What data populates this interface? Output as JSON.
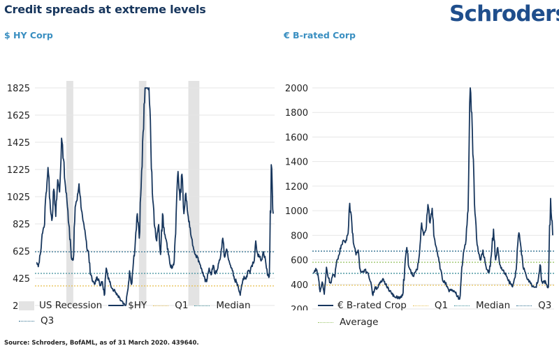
{
  "header": {
    "title": "Credit spreads at extreme levels",
    "logo": "Schroders"
  },
  "footer": {
    "source": "Source: Schroders, BofAML, as of 31 March 2020. 439640."
  },
  "colors": {
    "series": "#17365d",
    "q1": "#e8c35a",
    "median": "#3f8f9a",
    "q3": "#2f6f8f",
    "average": "#9cc56a",
    "recession": "#e3e3e3",
    "grid": "#e6e6e6",
    "subtitle": "#3a8fc1"
  },
  "chart_data": [
    {
      "type": "line",
      "title": "$ HY Corp",
      "xlabel": "",
      "ylabel": "",
      "ylim": [
        225,
        1825
      ],
      "yticks": [
        1825,
        1625,
        1425,
        1225,
        1025,
        825,
        625,
        425,
        225
      ],
      "grid": true,
      "legend_position": "bottom",
      "legend": [
        {
          "label": "US Recession",
          "kind": "rect",
          "color": "#e3e3e3"
        },
        {
          "label": "$HY",
          "kind": "line",
          "color": "#17365d"
        },
        {
          "label": "Q1",
          "kind": "dot",
          "color": "#e8c35a"
        },
        {
          "label": "Median",
          "kind": "dot",
          "color": "#3f8f9a"
        },
        {
          "label": "Q3",
          "kind": "dot",
          "color": "#2f6f8f"
        }
      ],
      "reference_lines": [
        {
          "name": "Q1",
          "value": 369,
          "color": "#e8c35a"
        },
        {
          "name": "Median",
          "value": 461,
          "color": "#3f8f9a"
        },
        {
          "name": "Q3",
          "value": 620,
          "color": "#2f6f8f"
        }
      ],
      "recessions": [
        [
          0.131,
          0.16
        ],
        [
          0.434,
          0.465
        ],
        [
          0.64,
          0.686
        ]
      ],
      "series": [
        {
          "name": "$HY",
          "values": [
            540,
            510,
            600,
            750,
            800,
            1050,
            1240,
            1000,
            850,
            1080,
            880,
            1150,
            1060,
            1455,
            1300,
            1100,
            950,
            800,
            580,
            560,
            950,
            1000,
            1120,
            950,
            850,
            780,
            650,
            600,
            450,
            400,
            380,
            430,
            420,
            370,
            400,
            300,
            500,
            420,
            400,
            350,
            340,
            320,
            300,
            280,
            260,
            240,
            225,
            330,
            480,
            380,
            540,
            700,
            900,
            720,
            1100,
            1500,
            1825,
            1825,
            1825,
            1400,
            1000,
            800,
            700,
            820,
            600,
            900,
            750,
            700,
            600,
            520,
            500,
            550,
            900,
            1210,
            1000,
            1190,
            900,
            1050,
            900,
            800,
            720,
            640,
            600,
            580,
            540,
            500,
            450,
            400,
            420,
            500,
            450,
            520,
            460,
            480,
            540,
            600,
            720,
            580,
            640,
            560,
            520,
            480,
            420,
            400,
            360,
            300,
            380,
            440,
            420,
            480,
            460,
            520,
            540,
            700,
            600,
            580,
            560,
            620,
            560,
            450,
            440,
            1260,
            900
          ]
        }
      ]
    },
    {
      "type": "line",
      "title": "€ B-rated Corp",
      "xlabel": "",
      "ylabel": "",
      "ylim": [
        200,
        2000
      ],
      "yticks": [
        2000,
        1800,
        1600,
        1400,
        1200,
        1000,
        800,
        600,
        400,
        200
      ],
      "grid": true,
      "legend_position": "bottom",
      "legend": [
        {
          "label": "€ B-rated Crop",
          "kind": "line",
          "color": "#17365d"
        },
        {
          "label": "Q1",
          "kind": "dot",
          "color": "#e8c35a"
        },
        {
          "label": "Median",
          "kind": "dot",
          "color": "#3f8f9a"
        },
        {
          "label": "Q3",
          "kind": "dot",
          "color": "#2f6f8f"
        },
        {
          "label": "Average",
          "kind": "dot",
          "color": "#9cc56a"
        }
      ],
      "reference_lines": [
        {
          "name": "Q1",
          "value": 393,
          "color": "#e8c35a"
        },
        {
          "name": "Median",
          "value": 490,
          "color": "#3f8f9a"
        },
        {
          "name": "Average",
          "value": 580,
          "color": "#9cc56a"
        },
        {
          "name": "Q3",
          "value": 671,
          "color": "#2f6f8f"
        }
      ],
      "series": [
        {
          "name": "€ B-rated Crop",
          "values": [
            490,
            530,
            480,
            340,
            420,
            320,
            540,
            450,
            410,
            480,
            460,
            600,
            640,
            720,
            760,
            740,
            800,
            1060,
            900,
            720,
            640,
            680,
            520,
            500,
            520,
            500,
            470,
            420,
            310,
            380,
            370,
            400,
            420,
            440,
            400,
            380,
            350,
            320,
            300,
            290,
            300,
            290,
            310,
            520,
            700,
            540,
            500,
            470,
            500,
            520,
            650,
            900,
            800,
            840,
            1050,
            900,
            1020,
            780,
            700,
            620,
            520,
            430,
            420,
            380,
            340,
            360,
            340,
            330,
            300,
            280,
            540,
            680,
            760,
            1000,
            2060,
            1640,
            1060,
            780,
            650,
            600,
            680,
            580,
            520,
            500,
            640,
            850,
            600,
            700,
            560,
            520,
            500,
            470,
            430,
            410,
            380,
            450,
            580,
            820,
            700,
            540,
            500,
            440,
            430,
            400,
            380,
            380,
            420,
            560,
            420,
            430,
            400,
            380,
            1100,
            800
          ]
        }
      ]
    }
  ]
}
